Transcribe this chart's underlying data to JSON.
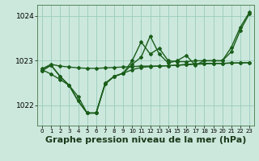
{
  "title": "Graphe pression niveau de la mer (hPa)",
  "background_color": "#cce8dd",
  "grid_color": "#99ccbb",
  "line_color": "#1a5e1a",
  "xlim": [
    -0.5,
    23.5
  ],
  "ylim": [
    1021.55,
    1024.25
  ],
  "yticks": [
    1022,
    1023,
    1024
  ],
  "xticks": [
    0,
    1,
    2,
    3,
    4,
    5,
    6,
    7,
    8,
    9,
    10,
    11,
    12,
    13,
    14,
    15,
    16,
    17,
    18,
    19,
    20,
    21,
    22,
    23
  ],
  "series": [
    {
      "x": [
        0,
        1,
        2,
        3,
        4,
        5,
        6,
        7,
        8,
        9,
        10,
        11,
        12,
        13,
        14,
        15,
        16,
        17,
        18,
        19,
        20,
        21,
        22,
        23
      ],
      "y": [
        1022.82,
        1022.92,
        1022.88,
        1022.86,
        1022.84,
        1022.83,
        1022.83,
        1022.84,
        1022.85,
        1022.86,
        1022.87,
        1022.88,
        1022.88,
        1022.88,
        1022.89,
        1022.9,
        1022.91,
        1022.92,
        1022.93,
        1022.94,
        1022.94,
        1022.95,
        1022.95,
        1022.96
      ],
      "marker": "D",
      "markersize": 2,
      "linewidth": 1.0
    },
    {
      "x": [
        0,
        1,
        2,
        3,
        4,
        5,
        6,
        7,
        8,
        9,
        10,
        11,
        12,
        13,
        14,
        15,
        16,
        17,
        18,
        19,
        20,
        21,
        22,
        23
      ],
      "y": [
        1022.8,
        1022.7,
        1022.58,
        1022.45,
        1022.2,
        1021.83,
        1021.83,
        1022.5,
        1022.65,
        1022.72,
        1022.8,
        1022.85,
        1022.87,
        1022.88,
        1022.89,
        1022.9,
        1022.92,
        1022.93,
        1022.94,
        1022.94,
        1022.94,
        1022.95,
        1022.95,
        1022.96
      ],
      "marker": "D",
      "markersize": 2,
      "linewidth": 1.0
    },
    {
      "x": [
        0,
        1,
        2,
        3,
        4,
        5,
        6,
        7,
        8,
        9,
        10,
        11,
        12,
        13,
        14,
        15,
        16,
        17,
        18,
        19,
        20,
        21,
        22,
        23
      ],
      "y": [
        1022.78,
        1022.9,
        1022.65,
        1022.45,
        1022.1,
        1021.83,
        1021.83,
        1022.48,
        1022.65,
        1022.72,
        1023.0,
        1023.42,
        1023.15,
        1023.28,
        1023.0,
        1022.98,
        1022.98,
        1023.0,
        1023.0,
        1023.0,
        1023.0,
        1023.2,
        1023.68,
        1024.05
      ],
      "marker": "D",
      "markersize": 2,
      "linewidth": 1.0
    },
    {
      "x": [
        0,
        1,
        2,
        3,
        4,
        5,
        6,
        7,
        8,
        9,
        10,
        11,
        12,
        13,
        14,
        15,
        16,
        17,
        18,
        19,
        20,
        21,
        22,
        23
      ],
      "y": [
        1022.78,
        1022.9,
        1022.65,
        1022.45,
        1022.1,
        1021.83,
        1021.83,
        1022.48,
        1022.65,
        1022.72,
        1022.92,
        1023.08,
        1023.55,
        1023.15,
        1022.95,
        1023.0,
        1023.12,
        1022.9,
        1023.0,
        1023.0,
        1023.0,
        1023.3,
        1023.75,
        1024.08
      ],
      "marker": "D",
      "markersize": 2,
      "linewidth": 1.0
    }
  ],
  "xlabel_fontsize": 8,
  "tick_fontsize": 6.5,
  "xtick_fontsize": 5.0
}
